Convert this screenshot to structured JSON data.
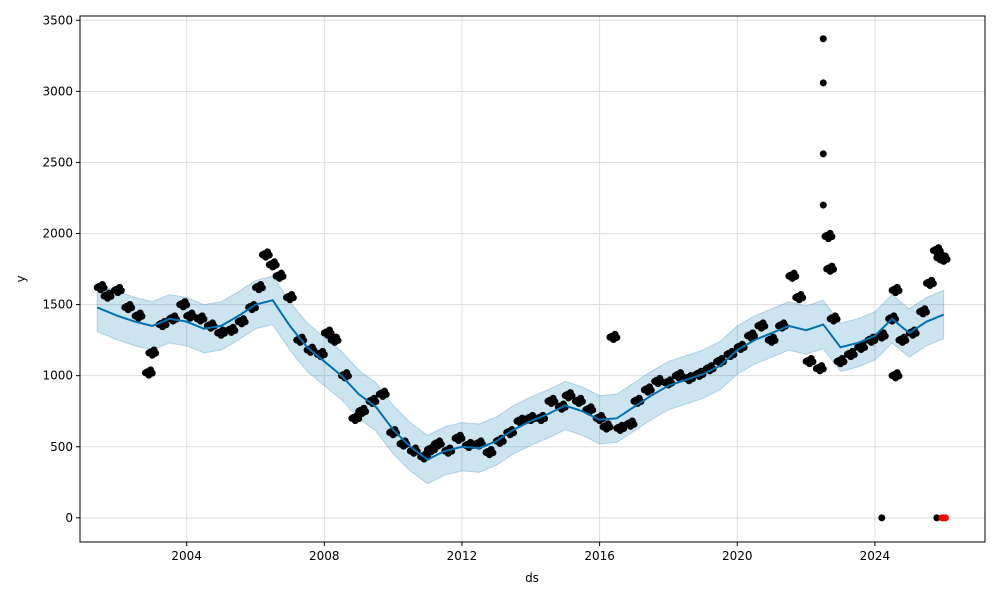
{
  "chart_data": {
    "type": "line",
    "title": "",
    "xlabel": "ds",
    "ylabel": "y",
    "xlim": [
      2000.9,
      2027.2
    ],
    "ylim": [
      -170,
      3530
    ],
    "grid": true,
    "x_ticks": [
      2004,
      2008,
      2012,
      2016,
      2020,
      2024
    ],
    "y_ticks": [
      0,
      500,
      1000,
      1500,
      2000,
      2500,
      3000,
      3500
    ],
    "colors": {
      "forecast": "#0072B2",
      "band": "#0072B2",
      "observed": "#000000",
      "highlight": "#ff0000"
    },
    "band_halfwidth": 170,
    "forecast": {
      "name": "yhat",
      "x": [
        2001.4,
        2002,
        2002.5,
        2003,
        2003.5,
        2004,
        2004.5,
        2005,
        2005.5,
        2006,
        2006.5,
        2007,
        2007.5,
        2008,
        2008.5,
        2009,
        2009.5,
        2010,
        2010.5,
        2011,
        2011.5,
        2012,
        2012.5,
        2013,
        2013.5,
        2014,
        2014.5,
        2015,
        2015.5,
        2016,
        2016.5,
        2017,
        2017.5,
        2018,
        2018.5,
        2019,
        2019.5,
        2020,
        2020.5,
        2021,
        2021.5,
        2022,
        2022.5,
        2023,
        2023.5,
        2024,
        2024.5,
        2025,
        2025.5,
        2026
      ],
      "y": [
        1480,
        1420,
        1380,
        1350,
        1400,
        1380,
        1330,
        1350,
        1420,
        1500,
        1530,
        1350,
        1200,
        1100,
        1000,
        870,
        780,
        620,
        500,
        410,
        470,
        500,
        490,
        540,
        620,
        680,
        730,
        790,
        750,
        690,
        700,
        780,
        860,
        930,
        970,
        1010,
        1070,
        1180,
        1250,
        1300,
        1350,
        1320,
        1360,
        1200,
        1230,
        1280,
        1400,
        1300,
        1380,
        1430
      ]
    },
    "observed": {
      "name": "y",
      "x": [
        2001.4,
        2001.6,
        2001.9,
        2002.2,
        2002.5,
        2002.8,
        2002.9,
        2003.2,
        2003.5,
        2003.8,
        2004.0,
        2004.3,
        2004.6,
        2004.9,
        2005.2,
        2005.5,
        2005.8,
        2006.0,
        2006.2,
        2006.4,
        2006.6,
        2006.9,
        2007.2,
        2007.5,
        2007.8,
        2008.0,
        2008.2,
        2008.5,
        2008.8,
        2009.0,
        2009.3,
        2009.6,
        2009.9,
        2010.2,
        2010.5,
        2010.8,
        2011.0,
        2011.2,
        2011.5,
        2011.8,
        2012.1,
        2012.4,
        2012.7,
        2013.0,
        2013.3,
        2013.6,
        2013.9,
        2014.2,
        2014.5,
        2014.8,
        2015.0,
        2015.3,
        2015.6,
        2015.9,
        2016.1,
        2016.3,
        2016.5,
        2016.8,
        2017.0,
        2017.3,
        2017.6,
        2017.9,
        2018.2,
        2018.5,
        2018.8,
        2019.1,
        2019.4,
        2019.7,
        2020.0,
        2020.3,
        2020.6,
        2020.9,
        2021.2,
        2021.5,
        2021.7,
        2022.0,
        2022.3,
        2022.5,
        2022.5,
        2022.5,
        2022.5,
        2022.55,
        2022.6,
        2022.7,
        2022.9,
        2023.2,
        2023.5,
        2023.8,
        2024.1,
        2024.2,
        2024.4,
        2024.5,
        2024.5,
        2024.7,
        2025.0,
        2025.3,
        2025.5,
        2025.7,
        2025.8,
        2025.9,
        2025.8
      ],
      "y": [
        1620,
        1560,
        1600,
        1480,
        1420,
        1020,
        1160,
        1360,
        1400,
        1500,
        1420,
        1400,
        1350,
        1300,
        1320,
        1380,
        1480,
        1620,
        1850,
        1780,
        1700,
        1550,
        1250,
        1180,
        1150,
        1300,
        1250,
        1000,
        700,
        750,
        820,
        870,
        600,
        520,
        470,
        430,
        480,
        520,
        470,
        560,
        510,
        520,
        460,
        540,
        600,
        680,
        700,
        700,
        820,
        780,
        860,
        820,
        760,
        700,
        640,
        1270,
        630,
        660,
        820,
        900,
        960,
        950,
        1000,
        980,
        1010,
        1050,
        1100,
        1150,
        1200,
        1280,
        1350,
        1250,
        1350,
        1700,
        1550,
        1100,
        1050,
        3370,
        3060,
        2560,
        2200,
        1980,
        1750,
        1400,
        1100,
        1150,
        1200,
        1250,
        1280,
        0,
        1400,
        1600,
        1000,
        1250,
        1300,
        1450,
        1650,
        1880,
        1830,
        1820,
        0
      ],
      "highlight_x": [
        2025.95,
        2026.0,
        2026.05
      ],
      "highlight_y": [
        0,
        0,
        0
      ]
    }
  }
}
